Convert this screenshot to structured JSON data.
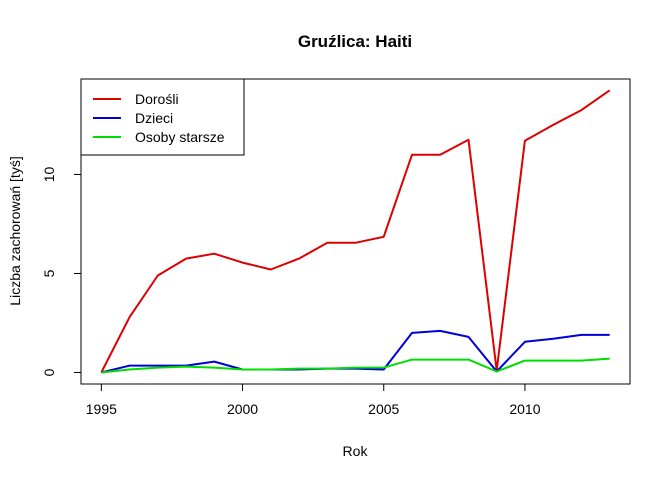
{
  "chart_data": {
    "type": "line",
    "title": "Gruźlica: Haiti",
    "xlabel": "Rok",
    "ylabel": "Liczba zachorowań [tyś]",
    "x": [
      1995,
      1996,
      1997,
      1998,
      1999,
      2000,
      2001,
      2002,
      2003,
      2004,
      2005,
      2006,
      2007,
      2008,
      2009,
      2010,
      2011,
      2012,
      2013
    ],
    "xlim": [
      1994.28,
      2013.72
    ],
    "ylim": [
      -0.58,
      14.82
    ],
    "xticks": [
      "1995",
      "2000",
      "2005",
      "2010"
    ],
    "yticks": [
      "0",
      "5",
      "10"
    ],
    "grid": false,
    "legend_position": "top-left",
    "series": [
      {
        "name": "Dorośli",
        "color": "#dd0000",
        "values": [
          0,
          2.8,
          4.9,
          5.75,
          6.0,
          5.55,
          5.2,
          5.75,
          6.55,
          6.55,
          6.85,
          11.0,
          11.0,
          11.75,
          0.1,
          11.7,
          12.5,
          13.25,
          14.25
        ]
      },
      {
        "name": "Dzieci",
        "color": "#0000dd",
        "values": [
          0,
          0.35,
          0.35,
          0.35,
          0.55,
          0.15,
          0.15,
          0.15,
          0.2,
          0.2,
          0.15,
          2.0,
          2.1,
          1.8,
          0.05,
          1.55,
          1.7,
          1.9,
          1.9
        ]
      },
      {
        "name": "Osoby starsze",
        "color": "#00dd00",
        "values": [
          0,
          0.15,
          0.25,
          0.3,
          0.25,
          0.15,
          0.15,
          0.2,
          0.2,
          0.25,
          0.25,
          0.65,
          0.65,
          0.65,
          0.05,
          0.6,
          0.6,
          0.6,
          0.7
        ]
      }
    ]
  }
}
